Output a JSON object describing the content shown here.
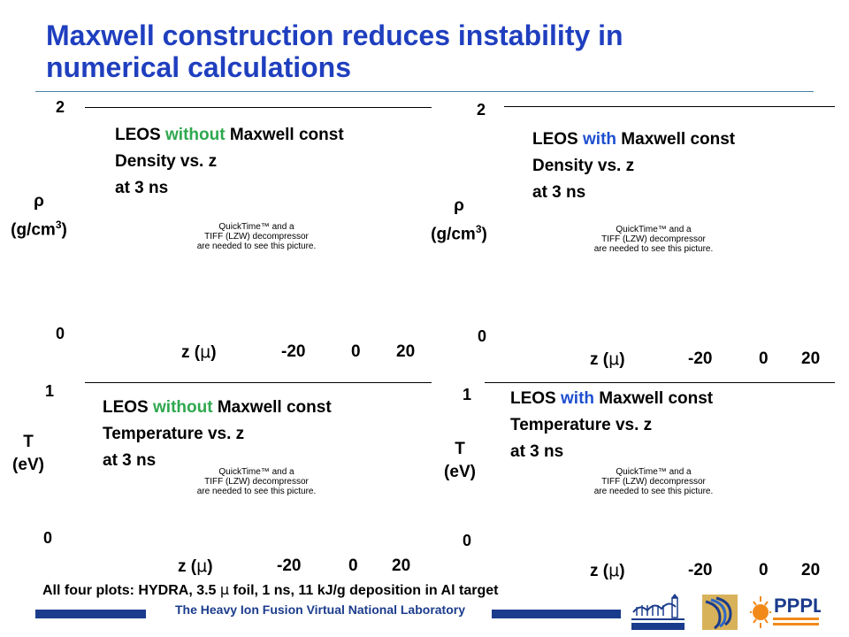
{
  "slide": {
    "title_line1": "Maxwell construction reduces instability in",
    "title_line2": "numerical calculations",
    "footer_note_prefix": "All four plots: HYDRA, 3.5 ",
    "footer_note_mu": "μ",
    "footer_note_suffix": " foil, 1 ns, 11 kJ/g deposition in Al target",
    "lab_name": "The Heavy Ion Fusion Virtual National Laboratory",
    "logos": [
      "berkeley-lab-logo",
      "llnl-logo",
      "pppl-logo"
    ],
    "pppl_text": "PPPL",
    "colors": {
      "title": "#1f3fbf",
      "without": "#2fa84f",
      "with": "#1f4fd0",
      "bar": "#1b3c8c"
    }
  },
  "placeholder": {
    "line1": "QuickTime™ and a",
    "line2": "TIFF (LZW) decompressor",
    "line3": "are needed to see this picture."
  },
  "panels": {
    "tl": {
      "ytop": "2",
      "ybot": "0",
      "ylabel_sym": "ρ",
      "ylabel_unit": "(g/cm",
      "ylabel_sup": "3",
      "ylabel_close": ")",
      "ann_pre": "LEOS ",
      "ann_kw": "without",
      "ann_post": " Maxwell const",
      "ann_line2": "Density vs. z",
      "ann_line3": "at 3 ns",
      "z_label": "z (",
      "z_mu": "μ",
      "z_close": ")",
      "ticks": [
        "-20",
        "0",
        "20"
      ]
    },
    "tr": {
      "ytop": "2",
      "ybot": "0",
      "ylabel_sym": "ρ",
      "ylabel_unit": "(g/cm",
      "ylabel_sup": "3",
      "ylabel_close": ")",
      "ann_pre": "LEOS ",
      "ann_kw": "with",
      "ann_post": " Maxwell const",
      "ann_line2": "Density vs. z",
      "ann_line3": "at 3 ns",
      "z_label": "z (",
      "z_mu": "μ",
      "z_close": ")",
      "ticks": [
        "-20",
        "0",
        "20"
      ]
    },
    "bl": {
      "ytop": "1",
      "ybot": "0",
      "ylabel_sym": "T",
      "ylabel_unit": "(eV)",
      "ann_pre": "LEOS ",
      "ann_kw": "without",
      "ann_post": " Maxwell const",
      "ann_line2": "Temperature vs. z",
      "ann_line3": "at 3 ns",
      "z_label": "z (",
      "z_mu": "μ",
      "z_close": ")",
      "ticks": [
        "-20",
        "0",
        "20"
      ]
    },
    "br": {
      "ytop": "1",
      "ybot": "0",
      "ylabel_sym": "T",
      "ylabel_unit": "(eV)",
      "ann_pre": "LEOS ",
      "ann_kw": "with",
      "ann_post": " Maxwell const",
      "ann_line2": "Temperature vs. z",
      "ann_line3": "at 3 ns",
      "z_label": "z (",
      "z_mu": "μ",
      "z_close": ")",
      "ticks": [
        "-20",
        "0",
        "20"
      ]
    }
  }
}
